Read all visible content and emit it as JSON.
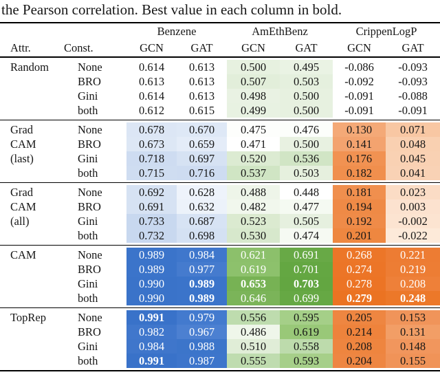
{
  "caption": "the Pearson correlation. Best value in each column in bold.",
  "header": {
    "attr": "Attr.",
    "const": "Const.",
    "groups": [
      {
        "label": "Benzene",
        "cols": [
          "GCN",
          "GAT"
        ]
      },
      {
        "label": "AmEthBenz",
        "cols": [
          "GCN",
          "GAT"
        ]
      },
      {
        "label": "CrippenLogP",
        "cols": [
          "GCN",
          "GAT"
        ]
      }
    ]
  },
  "colors": {
    "benzene_accent": "#3b74ca",
    "amethbenz_accent": "#6aa84f",
    "crippenlogp_accent": "#ec7628",
    "rule": "#000000"
  },
  "blocks": [
    {
      "attr_lines": [
        "Random"
      ],
      "rows": [
        {
          "const": "None",
          "cells": [
            {
              "v": "0.614"
            },
            {
              "v": "0.613"
            },
            {
              "v": "0.500",
              "bg": "#e7f1e0"
            },
            {
              "v": "0.495",
              "bg": "#eaf3e4"
            },
            {
              "v": "-0.086"
            },
            {
              "v": "-0.093"
            }
          ]
        },
        {
          "const": "BRO",
          "cells": [
            {
              "v": "0.613"
            },
            {
              "v": "0.613"
            },
            {
              "v": "0.507",
              "bg": "#e2eeda"
            },
            {
              "v": "0.503",
              "bg": "#e5f0de"
            },
            {
              "v": "-0.092"
            },
            {
              "v": "-0.093"
            }
          ]
        },
        {
          "const": "Gini",
          "cells": [
            {
              "v": "0.614"
            },
            {
              "v": "0.613"
            },
            {
              "v": "0.498",
              "bg": "#e9f2e3"
            },
            {
              "v": "0.500",
              "bg": "#e7f1e0"
            },
            {
              "v": "-0.091"
            },
            {
              "v": "-0.088"
            }
          ]
        },
        {
          "const": "both",
          "cells": [
            {
              "v": "0.612"
            },
            {
              "v": "0.615"
            },
            {
              "v": "0.499",
              "bg": "#e8f2e2"
            },
            {
              "v": "0.500",
              "bg": "#e7f1e0"
            },
            {
              "v": "-0.091"
            },
            {
              "v": "-0.091"
            }
          ]
        }
      ]
    },
    {
      "attr_lines": [
        "Grad",
        "CAM",
        "(last)"
      ],
      "rows": [
        {
          "const": "None",
          "cells": [
            {
              "v": "0.678",
              "bg": "#dce6f5"
            },
            {
              "v": "0.670",
              "bg": "#dee8f6"
            },
            {
              "v": "0.475",
              "bg": "#fdfefc"
            },
            {
              "v": "0.476",
              "bg": "#fcfefb"
            },
            {
              "v": "0.130",
              "bg": "#f4a977"
            },
            {
              "v": "0.071",
              "bg": "#f8c7a3"
            }
          ]
        },
        {
          "const": "BRO",
          "cells": [
            {
              "v": "0.673",
              "bg": "#dde7f5"
            },
            {
              "v": "0.659",
              "bg": "#e4ecf8"
            },
            {
              "v": "0.471",
              "bg": "#ffffff"
            },
            {
              "v": "0.500",
              "bg": "#e8f1e1"
            },
            {
              "v": "0.141",
              "bg": "#f3a36f"
            },
            {
              "v": "0.048",
              "bg": "#f9d0b1"
            }
          ]
        },
        {
          "const": "Gini",
          "cells": [
            {
              "v": "0.718",
              "bg": "#cedcf1"
            },
            {
              "v": "0.697",
              "bg": "#d6e2f3"
            },
            {
              "v": "0.520",
              "bg": "#dcebd2"
            },
            {
              "v": "0.536",
              "bg": "#d1e5c5"
            },
            {
              "v": "0.176",
              "bg": "#f19252"
            },
            {
              "v": "0.045",
              "bg": "#f9d1b3"
            }
          ]
        },
        {
          "const": "both",
          "cells": [
            {
              "v": "0.715",
              "bg": "#cfddf1"
            },
            {
              "v": "0.716",
              "bg": "#cedcf1"
            },
            {
              "v": "0.537",
              "bg": "#d0e5c4"
            },
            {
              "v": "0.503",
              "bg": "#e6f0de"
            },
            {
              "v": "0.182",
              "bg": "#f08f4d"
            },
            {
              "v": "0.041",
              "bg": "#f9d2b5"
            }
          ]
        }
      ]
    },
    {
      "attr_lines": [
        "Grad",
        "CAM",
        "(all)"
      ],
      "rows": [
        {
          "const": "None",
          "cells": [
            {
              "v": "0.692",
              "bg": "#d6e2f3"
            },
            {
              "v": "0.628",
              "bg": "#eef3fb"
            },
            {
              "v": "0.488",
              "bg": "#eef5e9"
            },
            {
              "v": "0.448",
              "bg": "#ffffff"
            },
            {
              "v": "0.181",
              "bg": "#f08f4e"
            },
            {
              "v": "0.023",
              "bg": "#fbdcc5"
            }
          ]
        },
        {
          "const": "BRO",
          "cells": [
            {
              "v": "0.691",
              "bg": "#d6e2f3"
            },
            {
              "v": "0.632",
              "bg": "#ecf2fa"
            },
            {
              "v": "0.482",
              "bg": "#f1f7ed"
            },
            {
              "v": "0.477",
              "bg": "#f5faf2"
            },
            {
              "v": "0.194",
              "bg": "#ef8a46"
            },
            {
              "v": "0.003",
              "bg": "#fce2cf"
            }
          ]
        },
        {
          "const": "Gini",
          "cells": [
            {
              "v": "0.733",
              "bg": "#c8d8ef"
            },
            {
              "v": "0.687",
              "bg": "#d7e3f4"
            },
            {
              "v": "0.523",
              "bg": "#dbead0"
            },
            {
              "v": "0.505",
              "bg": "#e6f0df"
            },
            {
              "v": "0.192",
              "bg": "#ef8b48"
            },
            {
              "v": "-0.002",
              "bg": "#fce4d1"
            }
          ]
        },
        {
          "const": "both",
          "cells": [
            {
              "v": "0.732",
              "bg": "#c8d8ef"
            },
            {
              "v": "0.698",
              "bg": "#d4e1f3"
            },
            {
              "v": "0.530",
              "bg": "#d7e8cc"
            },
            {
              "v": "0.474",
              "bg": "#f6faf3"
            },
            {
              "v": "0.201",
              "bg": "#ee8740"
            },
            {
              "v": "-0.022",
              "bg": "#fdead9"
            }
          ]
        }
      ]
    },
    {
      "attr_lines": [
        "CAM"
      ],
      "rows": [
        {
          "const": "None",
          "cells": [
            {
              "v": "0.989",
              "bg": "#3b74ca",
              "fg": "w"
            },
            {
              "v": "0.984",
              "bg": "#3f77cc",
              "fg": "w"
            },
            {
              "v": "0.621",
              "bg": "#8cc06b",
              "fg": "w"
            },
            {
              "v": "0.691",
              "bg": "#68a946",
              "fg": "w"
            },
            {
              "v": "0.268",
              "bg": "#ec7628",
              "fg": "w"
            },
            {
              "v": "0.221",
              "bg": "#ed7c33",
              "fg": "w"
            }
          ]
        },
        {
          "const": "BRO",
          "cells": [
            {
              "v": "0.989",
              "bg": "#3b74ca",
              "fg": "w"
            },
            {
              "v": "0.977",
              "bg": "#457bce",
              "fg": "w"
            },
            {
              "v": "0.619",
              "bg": "#8dc16c",
              "fg": "w"
            },
            {
              "v": "0.701",
              "bg": "#64a742",
              "fg": "w"
            },
            {
              "v": "0.274",
              "bg": "#ec7527",
              "fg": "w"
            },
            {
              "v": "0.219",
              "bg": "#ed7d34",
              "fg": "w"
            }
          ]
        },
        {
          "const": "Gini",
          "cells": [
            {
              "v": "0.990",
              "bg": "#3a73c9",
              "fg": "w"
            },
            {
              "v": "0.989",
              "bg": "#3b74ca",
              "fg": "w",
              "b": true
            },
            {
              "v": "0.653",
              "bg": "#77b254",
              "fg": "w",
              "b": true
            },
            {
              "v": "0.703",
              "bg": "#63a641",
              "fg": "w",
              "b": true
            },
            {
              "v": "0.278",
              "bg": "#ec7425",
              "fg": "w"
            },
            {
              "v": "0.208",
              "bg": "#ee8039",
              "fg": "w"
            }
          ]
        },
        {
          "const": "both",
          "cells": [
            {
              "v": "0.990",
              "bg": "#3a73c9",
              "fg": "w"
            },
            {
              "v": "0.989",
              "bg": "#3b74ca",
              "fg": "w",
              "b": true
            },
            {
              "v": "0.646",
              "bg": "#7bb459",
              "fg": "w"
            },
            {
              "v": "0.699",
              "bg": "#66a844",
              "fg": "w"
            },
            {
              "v": "0.279",
              "bg": "#eb7322",
              "fg": "w",
              "b": true
            },
            {
              "v": "0.248",
              "bg": "#ec7829",
              "fg": "w",
              "b": true
            }
          ]
        }
      ]
    },
    {
      "attr_lines": [
        "TopRep"
      ],
      "rows": [
        {
          "const": "None",
          "cells": [
            {
              "v": "0.991",
              "bg": "#3972c9",
              "fg": "w",
              "b": true
            },
            {
              "v": "0.979",
              "bg": "#437ace",
              "fg": "w"
            },
            {
              "v": "0.556",
              "bg": "#bedcae"
            },
            {
              "v": "0.595",
              "bg": "#a5cf88"
            },
            {
              "v": "0.205",
              "bg": "#ee8641"
            },
            {
              "v": "0.153",
              "bg": "#f0945a"
            }
          ]
        },
        {
          "const": "BRO",
          "cells": [
            {
              "v": "0.982",
              "bg": "#4077cc",
              "fg": "w"
            },
            {
              "v": "0.967",
              "bg": "#4c80d1",
              "fg": "w"
            },
            {
              "v": "0.486",
              "bg": "#eff6ea"
            },
            {
              "v": "0.619",
              "bg": "#99c878"
            },
            {
              "v": "0.214",
              "bg": "#ee833c"
            },
            {
              "v": "0.131",
              "bg": "#f29e66"
            }
          ]
        },
        {
          "const": "Gini",
          "cells": [
            {
              "v": "0.984",
              "bg": "#3f76cb",
              "fg": "w"
            },
            {
              "v": "0.988",
              "bg": "#3c75ca",
              "fg": "w"
            },
            {
              "v": "0.510",
              "bg": "#e0edd7"
            },
            {
              "v": "0.558",
              "bg": "#bddbac"
            },
            {
              "v": "0.208",
              "bg": "#ee853f"
            },
            {
              "v": "0.148",
              "bg": "#f1965d"
            }
          ]
        },
        {
          "const": "both",
          "cells": [
            {
              "v": "0.991",
              "bg": "#3972c9",
              "fg": "w",
              "b": true
            },
            {
              "v": "0.987",
              "bg": "#3d75cb",
              "fg": "w"
            },
            {
              "v": "0.555",
              "bg": "#bfdcaf"
            },
            {
              "v": "0.593",
              "bg": "#a6cf89"
            },
            {
              "v": "0.204",
              "bg": "#ee8642"
            },
            {
              "v": "0.155",
              "bg": "#f09358"
            }
          ]
        }
      ]
    }
  ]
}
